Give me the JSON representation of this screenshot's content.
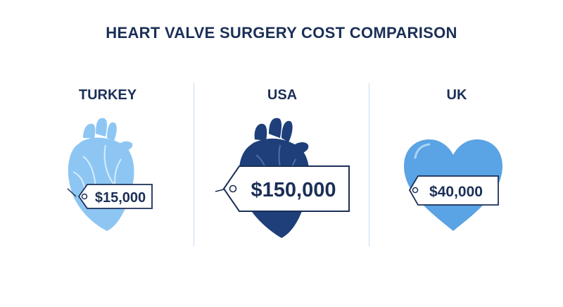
{
  "title": "HEART VALVE SURGERY COST COMPARISON",
  "countries": [
    {
      "name": "TURKEY",
      "price": "$15,000",
      "illustration": "anatomical-heart-icon",
      "color": "#8ec6f3"
    },
    {
      "name": "USA",
      "price": "$150,000",
      "illustration": "anatomical-heart-icon",
      "color": "#1e3f7a"
    },
    {
      "name": "UK",
      "price": "$40,000",
      "illustration": "heart-shape-icon",
      "color": "#5aa3e4"
    }
  ],
  "colors": {
    "title": "#1b2f57",
    "divider": "#c9ddf0",
    "tag_border": "#1b2f57"
  }
}
